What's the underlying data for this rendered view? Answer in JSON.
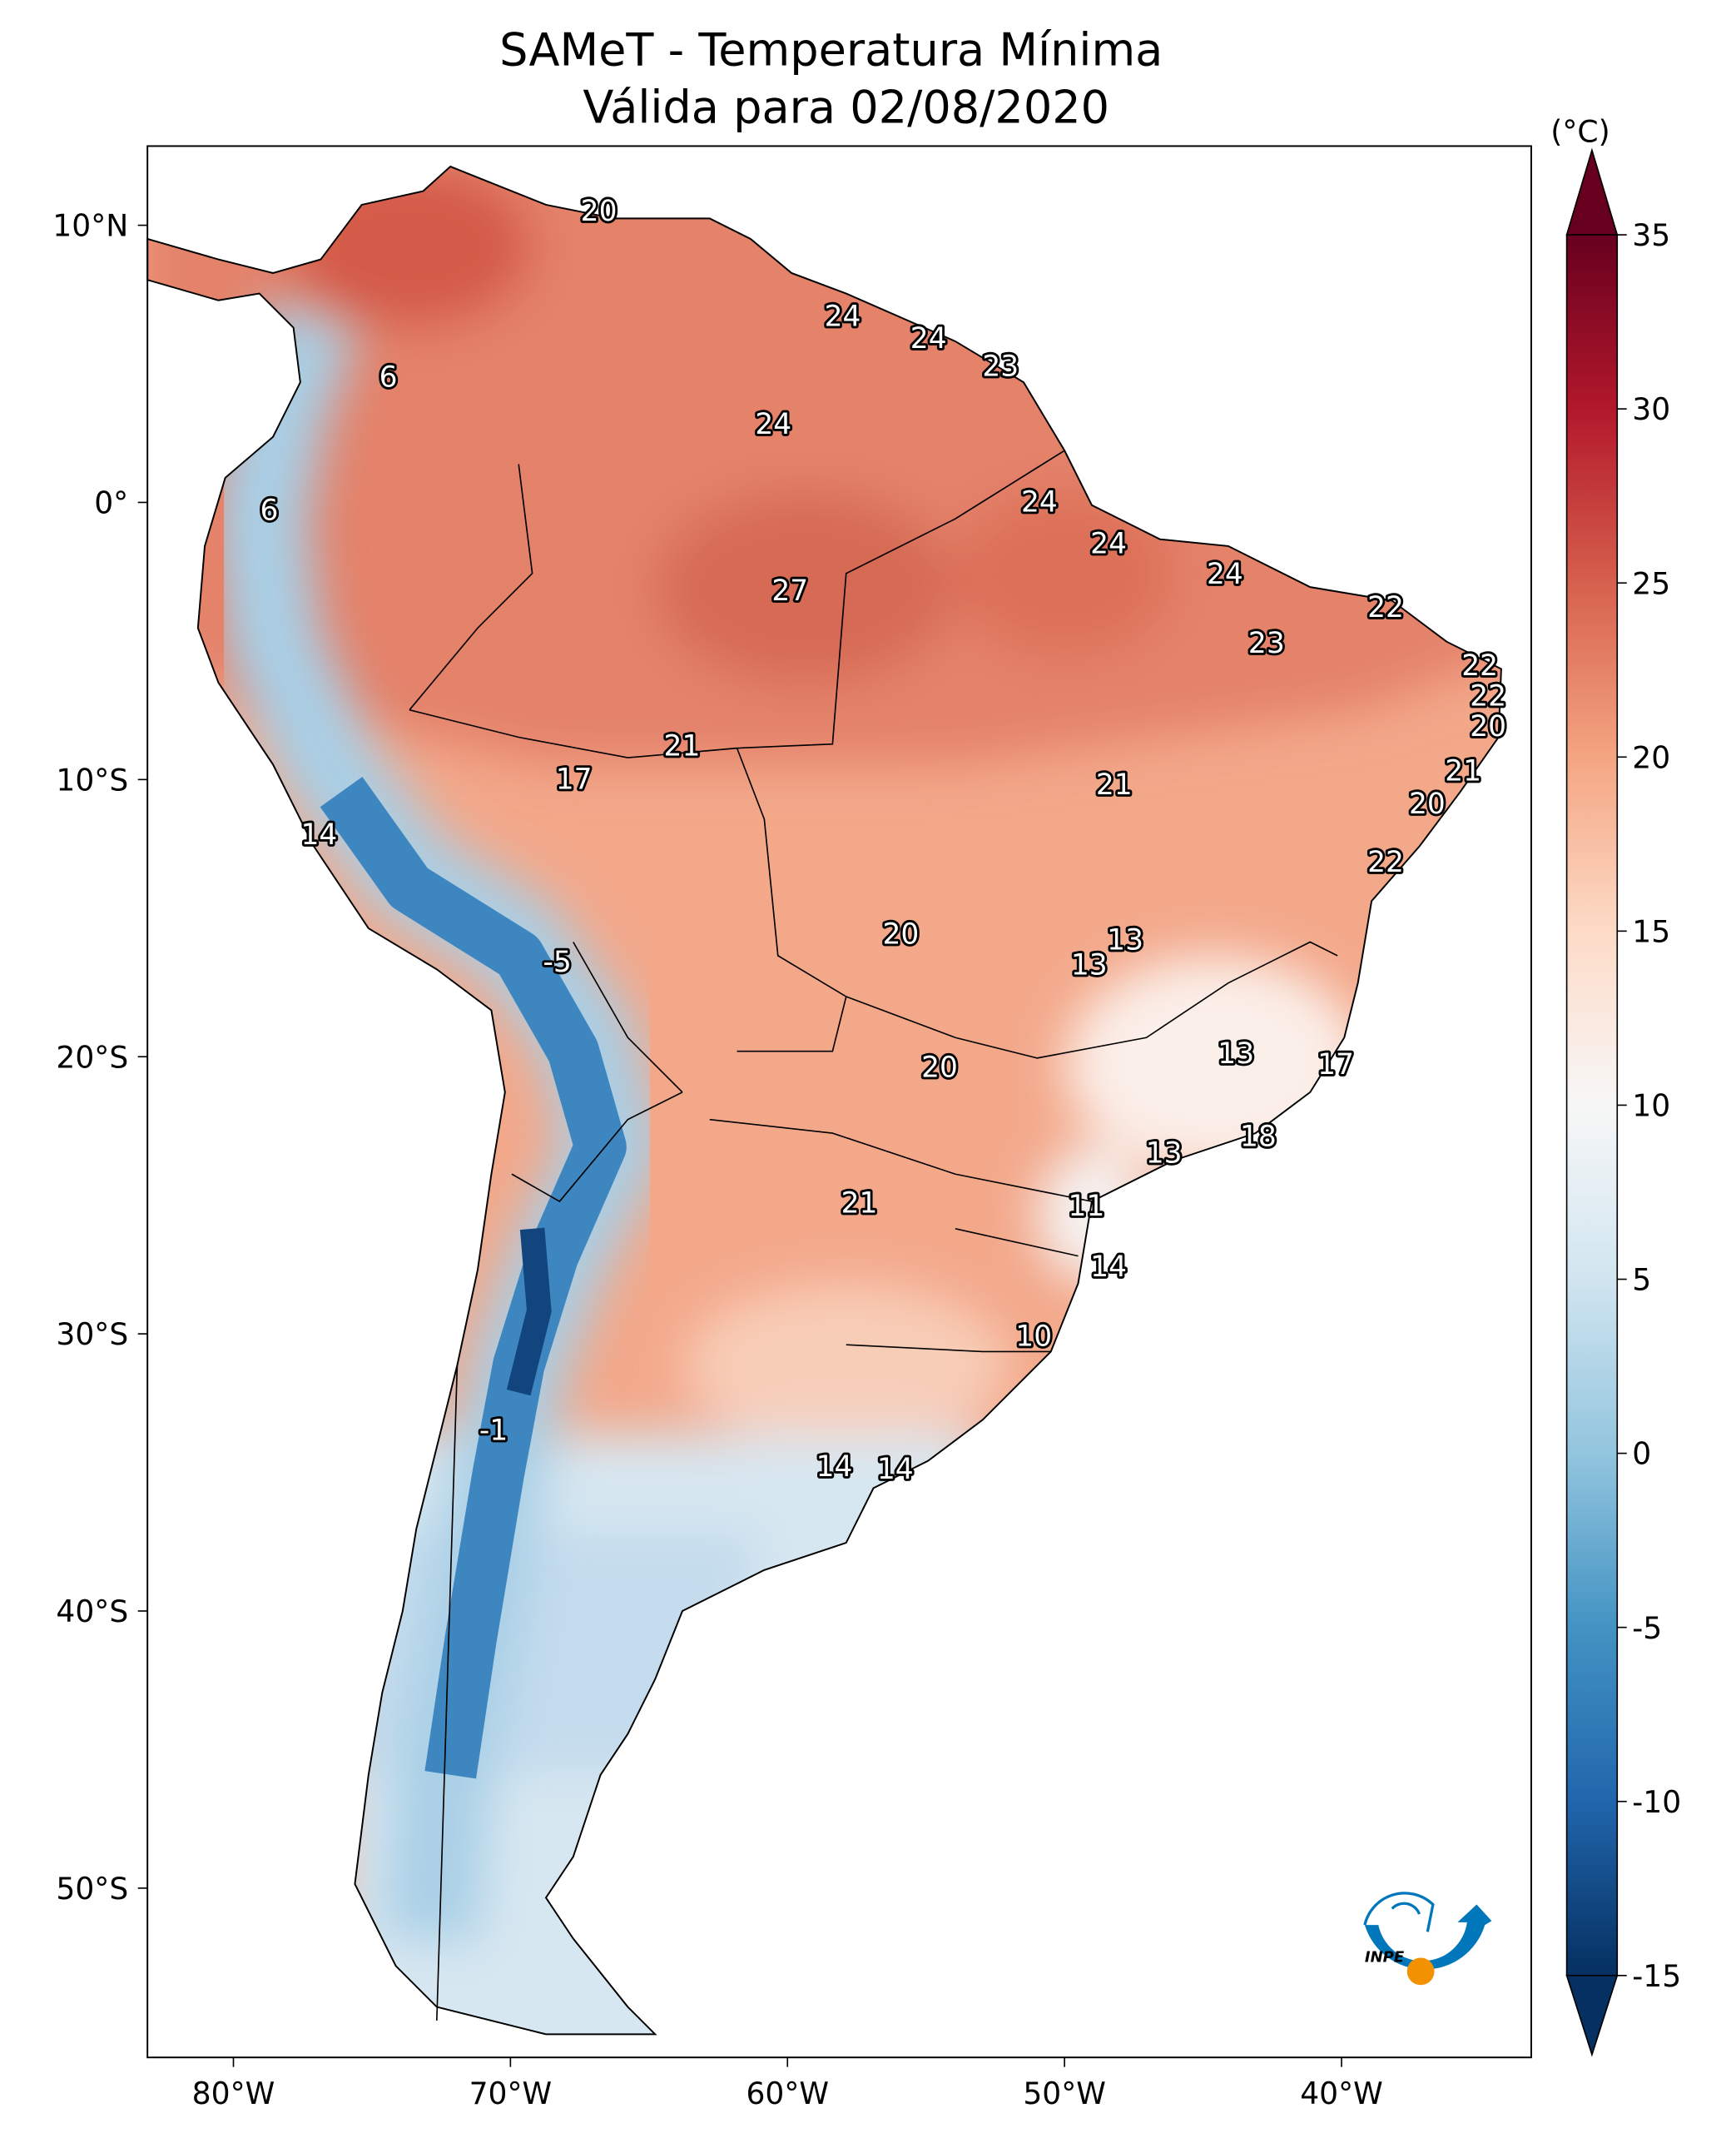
{
  "title": {
    "line1": "SAMeT - Temperatura Mínima",
    "line2": "Válida para 02/08/2020"
  },
  "colorbar": {
    "unit": "(°C)",
    "min": -15,
    "max": 35,
    "ticks": [
      "35",
      "30",
      "25",
      "20",
      "15",
      "10",
      "5",
      "0",
      "-5",
      "-10",
      "-15"
    ],
    "tick_values": [
      35,
      30,
      25,
      20,
      15,
      10,
      5,
      0,
      -5,
      -10,
      -15
    ],
    "colormap": "RdBu_r",
    "extend": "both",
    "colors": {
      "-15": "#053061",
      "-10": "#2166ac",
      "-5": "#4393c3",
      "0": "#92c5de",
      "5": "#d1e5f0",
      "10": "#f7f7f7",
      "15": "#fddbc7",
      "20": "#f4a582",
      "25": "#d6604d",
      "30": "#b2182b",
      "35": "#67001f"
    }
  },
  "axes": {
    "lon_ticks": [
      {
        "label": "80°W",
        "lon": -80
      },
      {
        "label": "70°W",
        "lon": -70
      },
      {
        "label": "60°W",
        "lon": -60
      },
      {
        "label": "50°W",
        "lon": -50
      },
      {
        "label": "40°W",
        "lon": -40
      }
    ],
    "lat_ticks": [
      {
        "label": "10°N",
        "lat": 10
      },
      {
        "label": "0°",
        "lat": 0
      },
      {
        "label": "10°S",
        "lat": -10
      },
      {
        "label": "20°S",
        "lat": -20
      },
      {
        "label": "30°S",
        "lat": -30
      },
      {
        "label": "40°S",
        "lat": -40
      },
      {
        "label": "50°S",
        "lat": -50
      }
    ]
  },
  "map_data": {
    "region": "South America",
    "variable": "Temperatura Mínima",
    "labels": [
      {
        "v": "20",
        "lon": -67.4,
        "lat": 10.6
      },
      {
        "v": "6",
        "lon": -75.0,
        "lat": 4.6
      },
      {
        "v": "24",
        "lon": -58.6,
        "lat": 6.8
      },
      {
        "v": "24",
        "lon": -55.5,
        "lat": 6.0
      },
      {
        "v": "23",
        "lon": -52.9,
        "lat": 5.0
      },
      {
        "v": "24",
        "lon": -61.1,
        "lat": 2.9
      },
      {
        "v": "6",
        "lon": -79.3,
        "lat": -0.2
      },
      {
        "v": "24",
        "lon": -51.5,
        "lat": 0.1
      },
      {
        "v": "24",
        "lon": -49.0,
        "lat": -1.4
      },
      {
        "v": "27",
        "lon": -60.5,
        "lat": -3.1
      },
      {
        "v": "24",
        "lon": -44.8,
        "lat": -2.5
      },
      {
        "v": "22",
        "lon": -39.0,
        "lat": -3.7
      },
      {
        "v": "23",
        "lon": -43.3,
        "lat": -5.0
      },
      {
        "v": "22",
        "lon": -35.6,
        "lat": -5.8
      },
      {
        "v": "22",
        "lon": -35.3,
        "lat": -6.9
      },
      {
        "v": "20",
        "lon": -35.3,
        "lat": -8.0
      },
      {
        "v": "21",
        "lon": -64.4,
        "lat": -8.7
      },
      {
        "v": "21",
        "lon": -36.2,
        "lat": -9.6
      },
      {
        "v": "17",
        "lon": -68.3,
        "lat": -9.9
      },
      {
        "v": "21",
        "lon": -48.8,
        "lat": -10.1
      },
      {
        "v": "20",
        "lon": -37.5,
        "lat": -10.8
      },
      {
        "v": "14",
        "lon": -77.5,
        "lat": -11.9
      },
      {
        "v": "22",
        "lon": -39.0,
        "lat": -12.9
      },
      {
        "v": "20",
        "lon": -56.5,
        "lat": -15.5
      },
      {
        "v": "13",
        "lon": -48.4,
        "lat": -15.7
      },
      {
        "v": "13",
        "lon": -49.7,
        "lat": -16.6
      },
      {
        "v": "-5",
        "lon": -68.9,
        "lat": -16.5
      },
      {
        "v": "13",
        "lon": -44.4,
        "lat": -19.8
      },
      {
        "v": "17",
        "lon": -40.8,
        "lat": -20.2
      },
      {
        "v": "20",
        "lon": -55.1,
        "lat": -20.3
      },
      {
        "v": "18",
        "lon": -43.6,
        "lat": -22.8
      },
      {
        "v": "13",
        "lon": -47.0,
        "lat": -23.4
      },
      {
        "v": "21",
        "lon": -58.0,
        "lat": -25.2
      },
      {
        "v": "11",
        "lon": -49.8,
        "lat": -25.3
      },
      {
        "v": "14",
        "lon": -49.0,
        "lat": -27.5
      },
      {
        "v": "10",
        "lon": -51.7,
        "lat": -30.0
      },
      {
        "v": "-1",
        "lon": -71.2,
        "lat": -33.4
      },
      {
        "v": "14",
        "lon": -58.9,
        "lat": -34.7
      },
      {
        "v": "14",
        "lon": -56.7,
        "lat": -34.8
      }
    ]
  },
  "logo": {
    "text": "INPE",
    "colors": {
      "blue": "#0077bb",
      "orange": "#f39200"
    }
  }
}
